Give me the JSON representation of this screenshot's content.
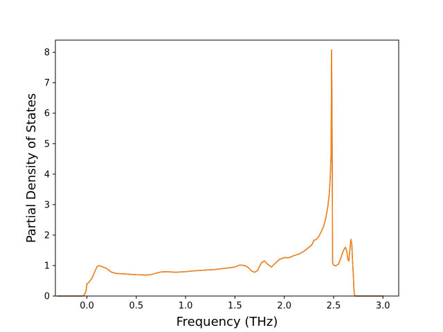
{
  "chart_data": {
    "type": "line",
    "title": "",
    "xlabel": "Frequency (THz)",
    "ylabel": "Partial Density of States",
    "xlim": [
      -0.32,
      3.16
    ],
    "ylim": [
      0,
      8.4
    ],
    "xticks": [
      0.0,
      0.5,
      1.0,
      1.5,
      2.0,
      2.5,
      3.0
    ],
    "xtick_labels": [
      "0.0",
      "0.5",
      "1.0",
      "1.5",
      "2.0",
      "2.5",
      "3.0"
    ],
    "yticks": [
      0,
      1,
      2,
      3,
      4,
      5,
      6,
      7,
      8
    ],
    "ytick_labels": [
      "0",
      "1",
      "2",
      "3",
      "4",
      "5",
      "6",
      "7",
      "8"
    ],
    "grid": false,
    "legend": "none",
    "series": [
      {
        "color": "#1f77b4",
        "x": [
          -0.3,
          -0.05,
          -0.03,
          -0.01,
          0.0,
          0.02,
          0.05,
          0.08,
          0.1,
          0.12,
          0.15,
          0.2,
          0.25,
          0.3,
          0.4,
          0.5,
          0.6,
          0.65,
          0.7,
          0.75,
          0.8,
          0.9,
          1.0,
          1.1,
          1.2,
          1.3,
          1.4,
          1.5,
          1.55,
          1.6,
          1.63,
          1.67,
          1.7,
          1.73,
          1.77,
          1.8,
          1.83,
          1.87,
          1.9,
          1.95,
          2.0,
          2.05,
          2.1,
          2.15,
          2.2,
          2.25,
          2.28,
          2.3,
          2.32,
          2.35,
          2.38,
          2.4,
          2.42,
          2.44,
          2.455,
          2.465,
          2.475,
          2.48,
          2.485,
          2.49,
          2.495,
          2.5,
          2.52,
          2.55,
          2.58,
          2.6,
          2.62,
          2.635,
          2.645,
          2.655,
          2.665,
          2.675,
          2.685,
          2.69,
          2.7,
          2.705,
          2.71,
          2.72,
          2.73,
          2.735,
          2.8,
          3.0
        ],
        "y": [
          0,
          0,
          0.02,
          0.15,
          0.4,
          0.45,
          0.58,
          0.8,
          0.95,
          1.0,
          0.97,
          0.9,
          0.78,
          0.74,
          0.72,
          0.7,
          0.69,
          0.7,
          0.75,
          0.79,
          0.8,
          0.78,
          0.8,
          0.83,
          0.85,
          0.87,
          0.91,
          0.95,
          1.02,
          1.0,
          0.95,
          0.82,
          0.78,
          0.84,
          1.1,
          1.15,
          1.05,
          0.95,
          1.05,
          1.2,
          1.26,
          1.26,
          1.33,
          1.38,
          1.47,
          1.6,
          1.68,
          1.83,
          1.85,
          1.95,
          2.15,
          2.3,
          2.55,
          2.9,
          3.3,
          3.8,
          4.7,
          8.08,
          5.5,
          1.1,
          1.05,
          1.02,
          0.99,
          1.05,
          1.3,
          1.5,
          1.6,
          1.45,
          1.2,
          1.15,
          1.5,
          1.86,
          1.7,
          1.3,
          0.7,
          0.3,
          0.05,
          0,
          0,
          0,
          0,
          0
        ]
      },
      {
        "color": "#ff7f0e",
        "x": [
          -0.3,
          -0.05,
          -0.03,
          -0.01,
          0.0,
          0.02,
          0.05,
          0.08,
          0.1,
          0.12,
          0.15,
          0.2,
          0.25,
          0.3,
          0.4,
          0.5,
          0.6,
          0.65,
          0.7,
          0.75,
          0.8,
          0.9,
          1.0,
          1.1,
          1.2,
          1.3,
          1.4,
          1.5,
          1.55,
          1.6,
          1.63,
          1.67,
          1.7,
          1.73,
          1.77,
          1.8,
          1.83,
          1.87,
          1.9,
          1.95,
          2.0,
          2.05,
          2.1,
          2.15,
          2.2,
          2.25,
          2.28,
          2.3,
          2.32,
          2.35,
          2.38,
          2.4,
          2.42,
          2.44,
          2.455,
          2.465,
          2.475,
          2.48,
          2.485,
          2.49,
          2.495,
          2.5,
          2.52,
          2.55,
          2.58,
          2.6,
          2.62,
          2.635,
          2.645,
          2.655,
          2.665,
          2.675,
          2.685,
          2.69,
          2.7,
          2.705,
          2.71,
          2.72,
          2.73,
          2.735,
          2.8,
          3.0
        ],
        "y": [
          0,
          0,
          0.02,
          0.15,
          0.4,
          0.45,
          0.58,
          0.8,
          0.95,
          1.0,
          0.97,
          0.9,
          0.78,
          0.74,
          0.72,
          0.7,
          0.69,
          0.7,
          0.75,
          0.79,
          0.8,
          0.78,
          0.8,
          0.83,
          0.85,
          0.87,
          0.91,
          0.95,
          1.02,
          1.0,
          0.95,
          0.82,
          0.78,
          0.84,
          1.1,
          1.15,
          1.05,
          0.95,
          1.05,
          1.2,
          1.26,
          1.26,
          1.33,
          1.38,
          1.47,
          1.6,
          1.68,
          1.83,
          1.85,
          1.95,
          2.15,
          2.3,
          2.55,
          2.9,
          3.3,
          3.8,
          4.7,
          8.08,
          5.5,
          1.1,
          1.05,
          1.02,
          0.99,
          1.05,
          1.3,
          1.5,
          1.6,
          1.45,
          1.2,
          1.15,
          1.5,
          1.86,
          1.7,
          1.3,
          0.7,
          0.3,
          0.05,
          0,
          0,
          0,
          0,
          0
        ]
      }
    ]
  }
}
